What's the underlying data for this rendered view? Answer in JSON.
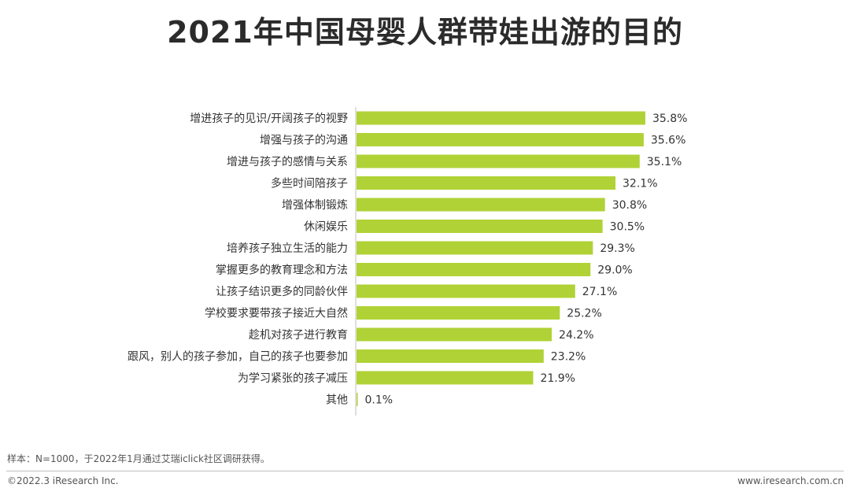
{
  "title": "2021年中国母婴人群带娃出游的目的",
  "chart_data": {
    "type": "bar",
    "orientation": "horizontal",
    "categories": [
      "增进孩子的见识/开阔孩子的视野",
      "增强与孩子的沟通",
      "增进与孩子的感情与关系",
      "多些时间陪孩子",
      "增强体制锻炼",
      "休闲娱乐",
      "培养孩子独立生活的能力",
      "掌握更多的教育理念和方法",
      "让孩子结识更多的同龄伙伴",
      "学校要求要带孩子接近大自然",
      "趁机对孩子进行教育",
      "跟风，别人的孩子参加，自己的孩子也要参加",
      "为学习紧张的孩子减压",
      "其他"
    ],
    "values": [
      35.8,
      35.6,
      35.1,
      32.1,
      30.8,
      30.5,
      29.3,
      29.0,
      27.1,
      25.2,
      24.2,
      23.2,
      21.9,
      0.1
    ],
    "value_labels": [
      "35.8%",
      "35.6%",
      "35.1%",
      "32.1%",
      "30.8%",
      "30.5%",
      "29.3%",
      "29.0%",
      "27.1%",
      "25.2%",
      "24.2%",
      "23.2%",
      "21.9%",
      "0.1%"
    ],
    "unit": "%",
    "xlim": [
      0,
      40
    ],
    "bar_color": "#b1d236",
    "axis_color": "#bfbfbf"
  },
  "footer": {
    "note": "样本：N=1000，于2022年1月通过艾瑞iclick社区调研获得。",
    "copyright": "©2022.3 iResearch Inc.",
    "website": "www.iresearch.com.cn"
  }
}
